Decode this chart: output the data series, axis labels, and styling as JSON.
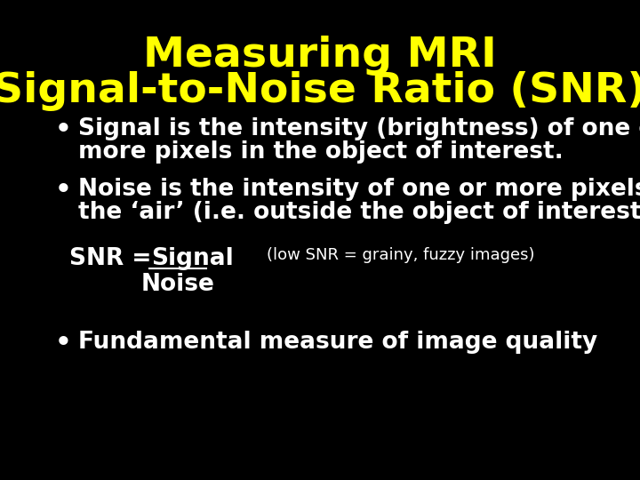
{
  "bg_color": "#000000",
  "title_line1": "Measuring MRI",
  "title_line2": "Signal-to-Noise Ratio (SNR)",
  "title_color": "#ffff00",
  "title_fontsize": 34,
  "bullet_color": "#ffffff",
  "bullet_fontsize": 19,
  "snr_note_fontsize": 13,
  "bullet1_line1": "Signal is the intensity (brightness) of one or",
  "bullet1_line2": "more pixels in the object of interest.",
  "bullet2_line1": "Noise is the intensity of one or more pixels in",
  "bullet2_line2": "the ‘air’ (i.e. outside the object of interest).",
  "snr_label": "SNR = ",
  "snr_numerator": "Signal",
  "snr_denominator": "Noise",
  "snr_note": "(low SNR = grainy, fuzzy images)",
  "bullet3": "Fundamental measure of image quality",
  "title_font": "DejaVu Sans",
  "body_font": "DejaVu Sans"
}
